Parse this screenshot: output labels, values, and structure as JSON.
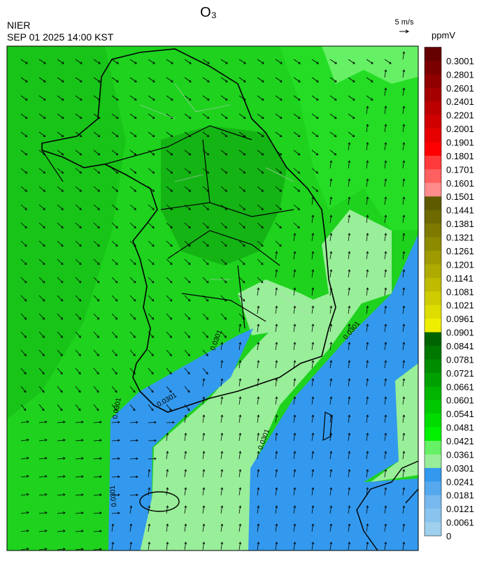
{
  "header": {
    "title": "O₃",
    "agency": "NIER",
    "timestamp": "SEP 01 2025 14:00 KST",
    "wind_reference": "5 m/s"
  },
  "colorbar": {
    "unit": "ppmV",
    "ticks": [
      0.3001,
      0.2801,
      0.2601,
      0.2401,
      0.2201,
      0.2001,
      0.1901,
      0.1801,
      0.1701,
      0.1601,
      0.1501,
      0.1441,
      0.1381,
      0.1321,
      0.1261,
      0.1201,
      0.1141,
      0.1081,
      0.1021,
      0.0961,
      0.0901,
      0.0841,
      0.0781,
      0.0721,
      0.0661,
      0.0601,
      0.0541,
      0.0481,
      0.0421,
      0.0361,
      0.0301,
      0.0241,
      0.0181,
      0.0121,
      0.0061,
      0
    ],
    "colors": [
      "#650000",
      "#7a0000",
      "#900000",
      "#a50000",
      "#bb0000",
      "#d00000",
      "#e60000",
      "#ff0000",
      "#ff3a3a",
      "#ff6060",
      "#ff8c8c",
      "#5e5a00",
      "#6e6a00",
      "#7e7a00",
      "#8e8a00",
      "#9e9a00",
      "#aeaa00",
      "#bebb00",
      "#cecc00",
      "#dedd00",
      "#eeee00",
      "#006400",
      "#007800",
      "#008c00",
      "#00a000",
      "#00b400",
      "#00c800",
      "#00dc00",
      "#00f000",
      "#66f066",
      "#99ee99",
      "#3399ee",
      "#55a8ee",
      "#77b8ee",
      "#88c4ee",
      "#9fd0ee"
    ]
  },
  "map": {
    "contour_labels": [
      "0.0301",
      "0.0301",
      "0.0301",
      "0.0301",
      "0.0301",
      "0.0301"
    ]
  }
}
